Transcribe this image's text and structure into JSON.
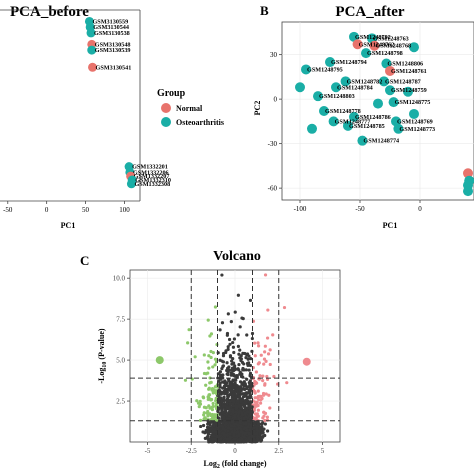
{
  "panels": {
    "A": {
      "title": "PCA_before",
      "xlabel": "PC1",
      "ylabel": ""
    },
    "B": {
      "letter": "B",
      "title": "PCA_after",
      "xlabel": "PC1",
      "ylabel": "PC2"
    },
    "C": {
      "letter": "C",
      "title": "Volcano",
      "xlabel": "Log2 (fold change)",
      "ylabel": "-Log10 (P-value)"
    }
  },
  "legend": {
    "title": "Group",
    "items": [
      {
        "label": "Normal",
        "color": "#e8736c"
      },
      {
        "label": "Osteoarthritis",
        "color": "#1aaea6"
      }
    ]
  },
  "chart_data": [
    {
      "type": "scatter",
      "title": "PCA_before",
      "xlabel": "PC1",
      "xticks": [
        "-50",
        "0",
        "50",
        "100"
      ],
      "xlim": [
        -60,
        120
      ],
      "points": [
        {
          "label": "GSM3130559",
          "x": 55,
          "y": 54,
          "group": "Osteoarthritis"
        },
        {
          "label": "GSM3130544",
          "x": 56,
          "y": 51,
          "group": "Osteoarthritis"
        },
        {
          "label": "GSM3130538",
          "x": 57,
          "y": 48,
          "group": "Osteoarthritis"
        },
        {
          "label": "GSM3130548",
          "x": 58,
          "y": 42,
          "group": "Normal"
        },
        {
          "label": "GSM3130539",
          "x": 58,
          "y": 39,
          "group": "Osteoarthritis"
        },
        {
          "label": "GSM3130541",
          "x": 59,
          "y": 30,
          "group": "Normal"
        },
        {
          "label": "GSM1332201",
          "x": 106,
          "y": -22,
          "group": "Osteoarthritis"
        },
        {
          "label": "GSM1332206",
          "x": 107,
          "y": -25,
          "group": "Osteoarthritis"
        },
        {
          "label": "GSM1332207",
          "x": 108,
          "y": -27,
          "group": "Normal"
        },
        {
          "label": "GSM1332310",
          "x": 110,
          "y": -29,
          "group": "Osteoarthritis"
        },
        {
          "label": "GSM1332308",
          "x": 109,
          "y": -31,
          "group": "Osteoarthritis"
        }
      ]
    },
    {
      "type": "scatter",
      "title": "PCA_after",
      "xlabel": "PC1",
      "ylabel": "PC2",
      "xticks": [
        "-100",
        "-50",
        "0"
      ],
      "yticks": [
        "30",
        "0",
        "-30",
        "-60"
      ],
      "xlim": [
        -115,
        45
      ],
      "ylim": [
        -68,
        52
      ],
      "points": [
        {
          "label": "GSM1248792",
          "x": -55,
          "y": 42,
          "group": "Osteoarthritis"
        },
        {
          "label": "GSM1248763",
          "x": -40,
          "y": 41,
          "group": "Osteoarthritis"
        },
        {
          "label": "GSM1248762",
          "x": -52,
          "y": 37,
          "group": "Normal"
        },
        {
          "label": "GSM1248768",
          "x": -38,
          "y": 36,
          "group": "Normal"
        },
        {
          "label": "GSM1248798",
          "x": -45,
          "y": 31,
          "group": "Osteoarthritis"
        },
        {
          "label": "GSM1248806",
          "x": -28,
          "y": 24,
          "group": "Osteoarthritis"
        },
        {
          "label": "GSM1248761",
          "x": -25,
          "y": 19,
          "group": "Normal"
        },
        {
          "label": "GSM1248794",
          "x": -75,
          "y": 25,
          "group": "Osteoarthritis"
        },
        {
          "label": "GSM1248795",
          "x": -95,
          "y": 20,
          "group": "Osteoarthritis"
        },
        {
          "label": "GSM1248787",
          "x": -30,
          "y": 12,
          "group": "Osteoarthritis"
        },
        {
          "label": "GSM1248782",
          "x": -62,
          "y": 12,
          "group": "Osteoarthritis"
        },
        {
          "label": "GSM1248784",
          "x": -70,
          "y": 8,
          "group": "Osteoarthritis"
        },
        {
          "label": "GSM1248759",
          "x": -25,
          "y": 6,
          "group": "Osteoarthritis"
        },
        {
          "label": "GSM1248803",
          "x": -85,
          "y": 2,
          "group": "Osteoarthritis"
        },
        {
          "label": "GSM1248778",
          "x": -80,
          "y": -8,
          "group": "Osteoarthritis"
        },
        {
          "label": "GSM1248786",
          "x": -55,
          "y": -12,
          "group": "Osteoarthritis"
        },
        {
          "label": "GSM1248777",
          "x": -72,
          "y": -15,
          "group": "Osteoarthritis"
        },
        {
          "label": "GSM1248785",
          "x": -60,
          "y": -18,
          "group": "Osteoarthritis"
        },
        {
          "label": "GSM1248774",
          "x": -48,
          "y": -28,
          "group": "Osteoarthritis"
        },
        {
          "label": "GSM1248775",
          "x": -22,
          "y": -2,
          "group": "Osteoarthritis"
        },
        {
          "label": "GSM1248769",
          "x": -20,
          "y": -15,
          "group": "Osteoarthritis"
        },
        {
          "label": "GSM1248773",
          "x": -18,
          "y": -20,
          "group": "Osteoarthritis"
        }
      ]
    },
    {
      "type": "scatter",
      "title": "Volcano",
      "xlabel": "Log2 (fold change)",
      "ylabel": "-Log10 (P-value)",
      "xticks": [
        "-5",
        "-2.5",
        "0",
        "2.5",
        "5"
      ],
      "yticks": [
        "10.0",
        "7.5",
        "5.0",
        "2.5"
      ],
      "xlim": [
        -6,
        6
      ],
      "ylim": [
        0,
        10.5
      ],
      "thresholds": {
        "log2fc": [
          -2.5,
          -1,
          1,
          2.5
        ],
        "neglog10p": [
          1.3,
          3.9
        ]
      },
      "highlighted": [
        {
          "x": -4.3,
          "y": 5.0,
          "color": "#8dc86a"
        },
        {
          "x": 4.1,
          "y": 4.9,
          "color": "#ef8a8f"
        }
      ]
    }
  ]
}
